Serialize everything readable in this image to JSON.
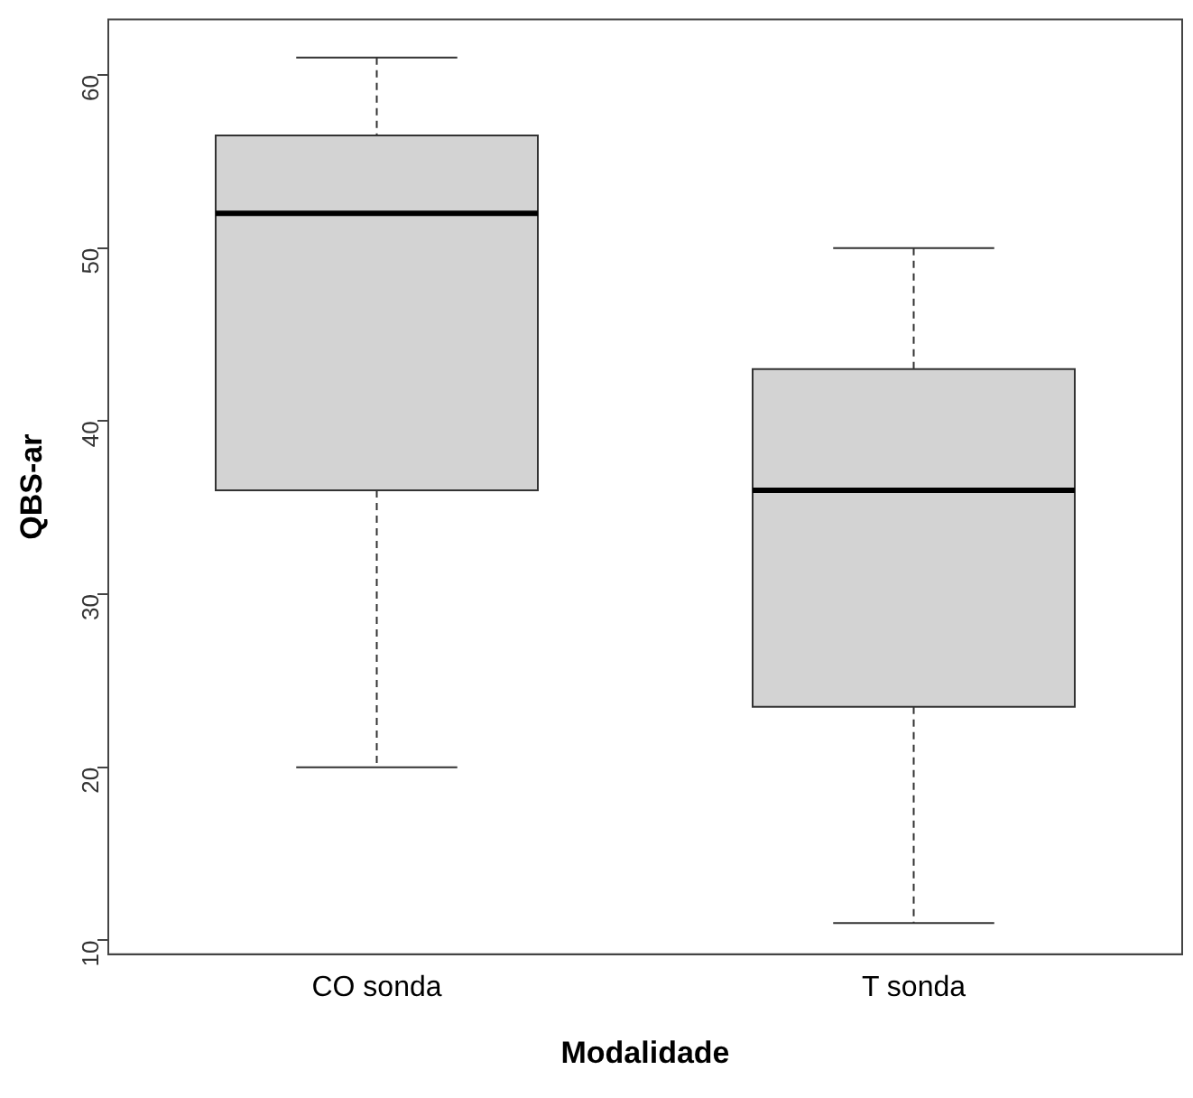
{
  "chart_data": {
    "type": "box",
    "xlabel": "Modalidade",
    "ylabel": "QBS-ar",
    "categories": [
      "CO sonda",
      "T sonda"
    ],
    "color": "#d3d3d3",
    "boxes": [
      {
        "low": 20,
        "q1": 36,
        "median": 52,
        "q3": 56.5,
        "high": 61
      },
      {
        "low": 11,
        "q1": 23.5,
        "median": 36,
        "q3": 43,
        "high": 50
      }
    ],
    "ylim": [
      9.2,
      63.2
    ],
    "yticks": [
      10,
      20,
      30,
      40,
      50,
      60
    ],
    "grid": false,
    "legend": false
  }
}
